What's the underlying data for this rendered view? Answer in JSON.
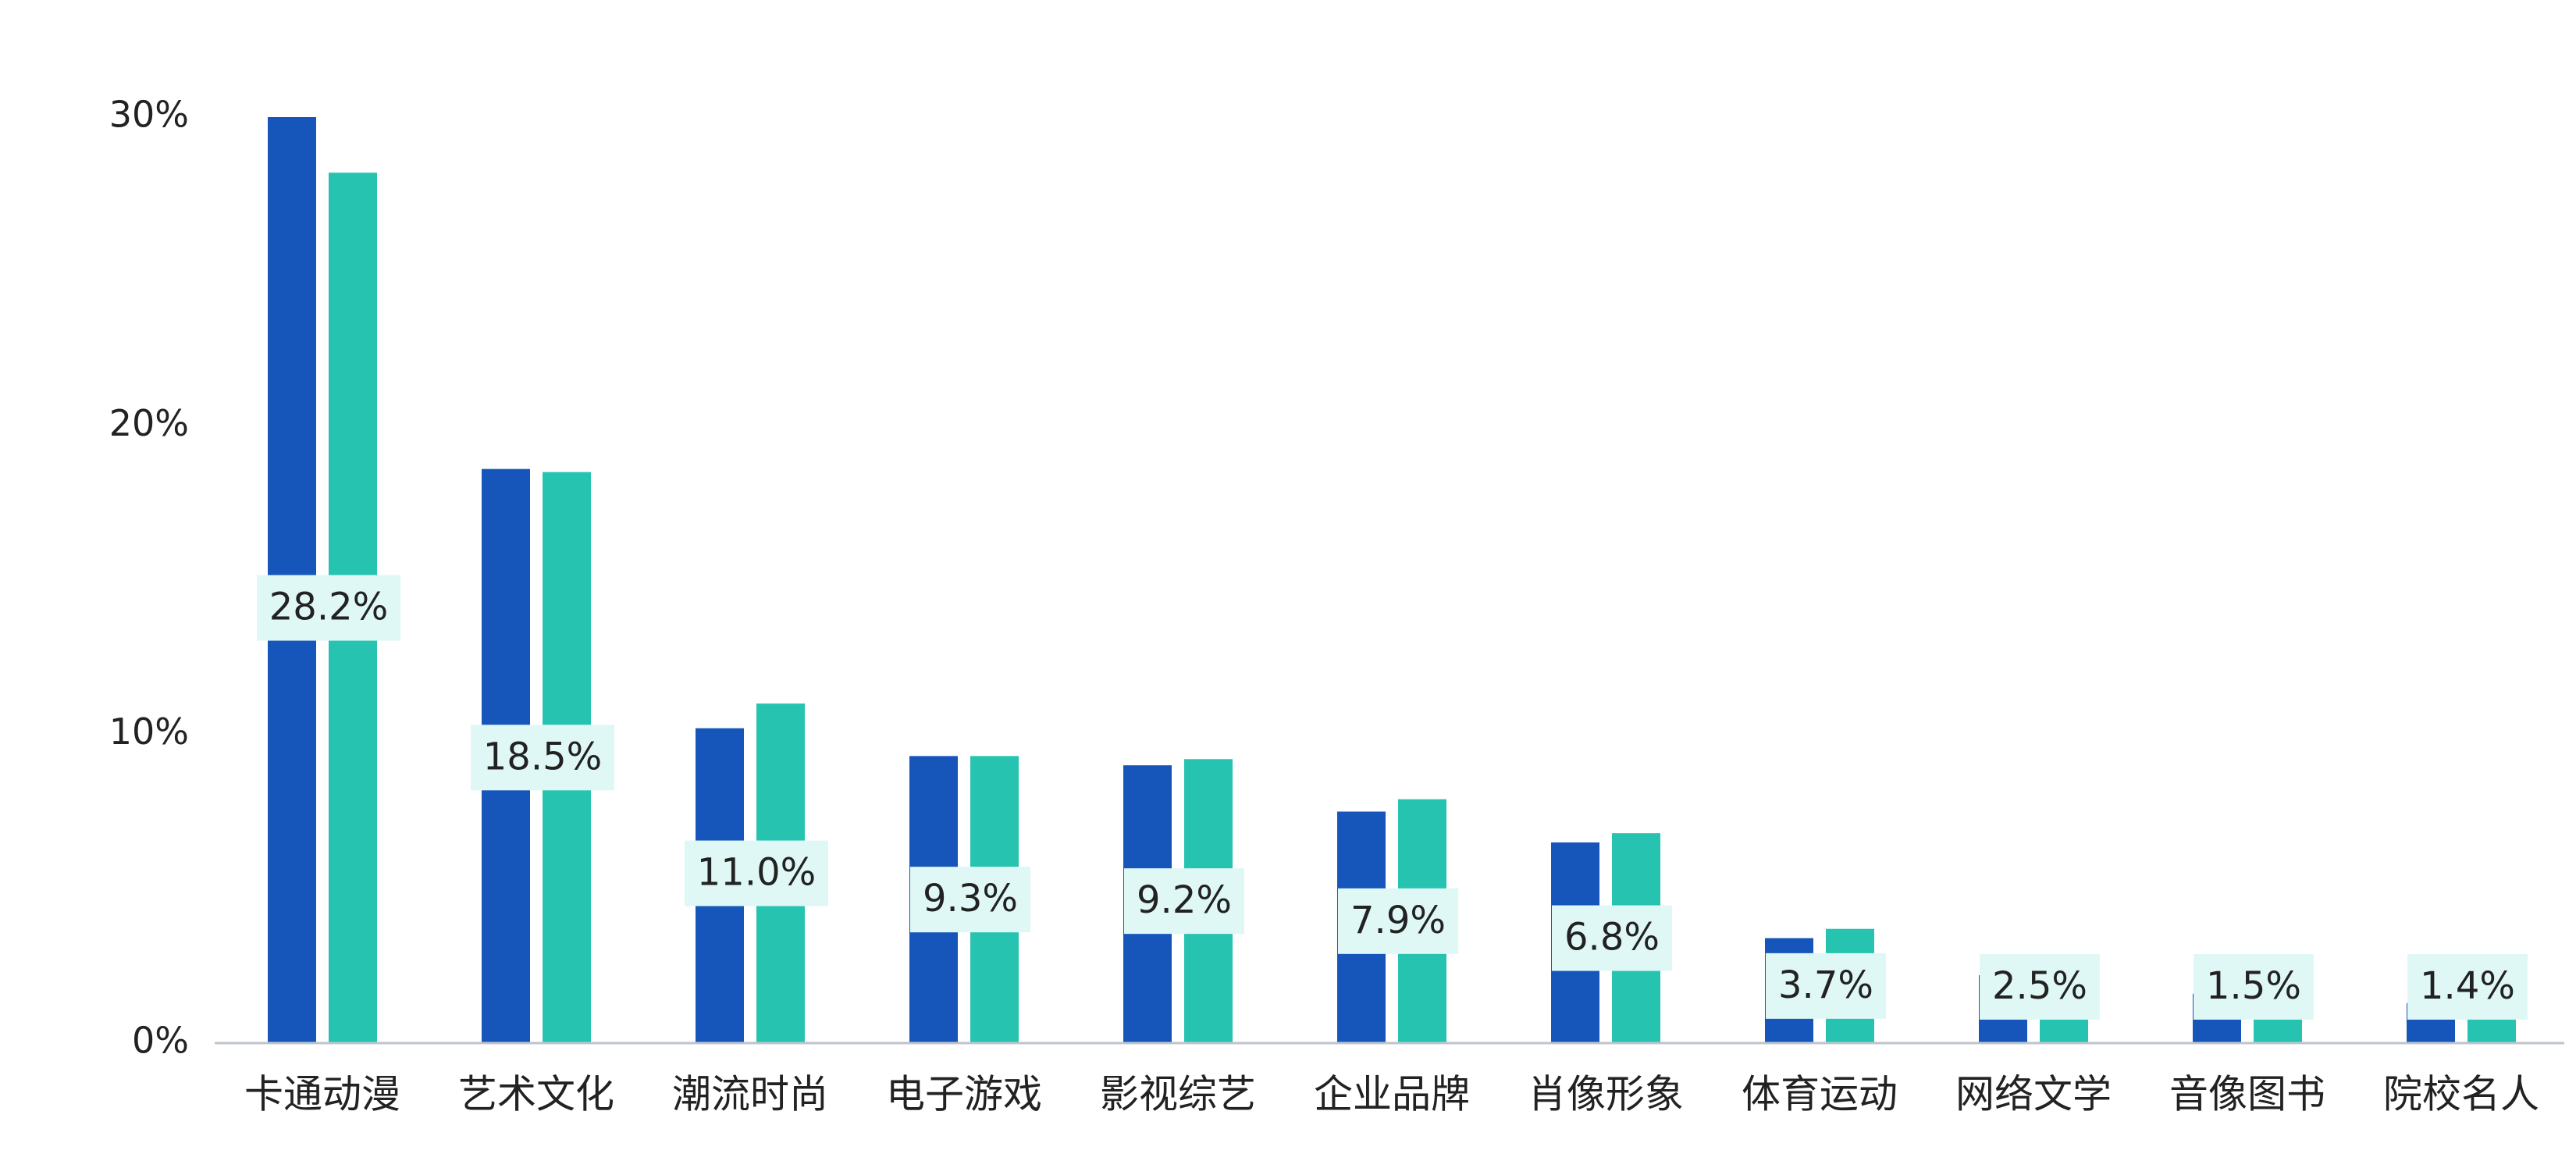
{
  "chart_data": {
    "type": "bar",
    "categories": [
      "卡通动漫",
      "艺术文化",
      "潮流时尚",
      "电子游戏",
      "影视综艺",
      "企业品牌",
      "肖像形象",
      "体育运动",
      "网络文学",
      "音像图书",
      "院校名人"
    ],
    "series": [
      {
        "color": "#1656bb",
        "values": [
          30.0,
          18.6,
          10.2,
          9.3,
          9.0,
          7.5,
          6.5,
          3.4,
          2.2,
          1.6,
          1.3
        ]
      },
      {
        "color": "#27c3b1",
        "values": [
          28.2,
          18.5,
          11.0,
          9.3,
          9.2,
          7.9,
          6.8,
          3.7,
          2.5,
          1.5,
          1.4
        ]
      }
    ],
    "data_labels": [
      "28.2%",
      "18.5%",
      "11.0%",
      "9.3%",
      "9.2%",
      "7.9%",
      "6.8%",
      "3.7%",
      "2.5%",
      "1.5%",
      "1.4%"
    ],
    "y_ticks": [
      "0%",
      "10%",
      "20%",
      "30%"
    ],
    "y_tick_values": [
      0,
      10,
      20,
      30
    ],
    "ylim": [
      0,
      30
    ],
    "title": "",
    "xlabel": "",
    "ylabel": "",
    "grid": false,
    "legend": "none",
    "label_box_color": "#dff8f6",
    "axis_color": "#bfc4cc",
    "text_color": "#222222"
  }
}
